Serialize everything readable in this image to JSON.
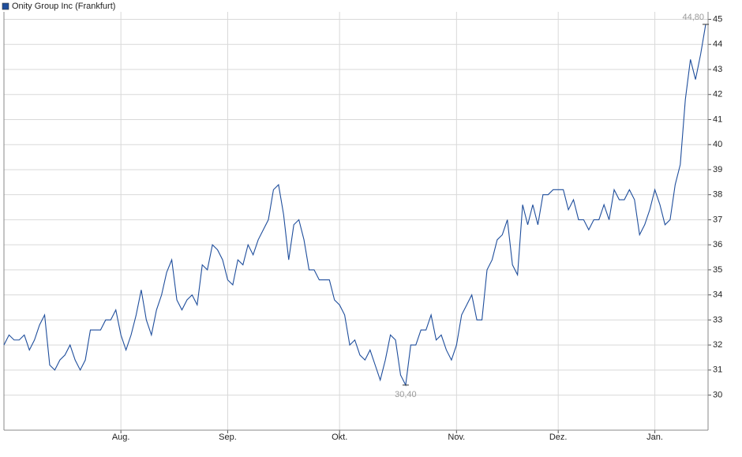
{
  "chart_data": {
    "type": "line",
    "categories": [
      null,
      null,
      null,
      null,
      null,
      null,
      null,
      null,
      null,
      null,
      null,
      null,
      null,
      null,
      null,
      null,
      null,
      null,
      null,
      null,
      null,
      null,
      null,
      "Aug.",
      null,
      null,
      null,
      null,
      null,
      null,
      null,
      null,
      null,
      null,
      null,
      null,
      null,
      null,
      null,
      null,
      null,
      null,
      null,
      null,
      "Sep.",
      null,
      null,
      null,
      null,
      null,
      null,
      null,
      null,
      null,
      null,
      null,
      null,
      null,
      null,
      null,
      null,
      null,
      null,
      null,
      null,
      null,
      "Okt.",
      null,
      null,
      null,
      null,
      null,
      null,
      null,
      null,
      null,
      null,
      null,
      null,
      null,
      null,
      null,
      null,
      null,
      null,
      null,
      null,
      null,
      null,
      "Nov.",
      null,
      null,
      null,
      null,
      null,
      null,
      null,
      null,
      null,
      null,
      null,
      null,
      null,
      null,
      null,
      null,
      null,
      null,
      null,
      "Dez.",
      null,
      null,
      null,
      null,
      null,
      null,
      null,
      null,
      null,
      null,
      null,
      null,
      null,
      null,
      null,
      null,
      null,
      null,
      "Jan.",
      null,
      null,
      null,
      null,
      null,
      null,
      null,
      null,
      null,
      null
    ],
    "series": [
      {
        "name": "Onity Group Inc (Frankfurt)",
        "color": "#1f4e9c",
        "values": [
          32.0,
          32.4,
          32.2,
          32.2,
          32.4,
          31.8,
          32.2,
          32.8,
          33.2,
          31.2,
          31.0,
          31.4,
          31.6,
          32.0,
          31.4,
          31.0,
          31.4,
          32.6,
          32.6,
          32.6,
          33.0,
          33.0,
          33.4,
          32.4,
          31.8,
          32.4,
          33.2,
          34.2,
          33.0,
          32.4,
          33.4,
          34.0,
          34.9,
          35.4,
          33.8,
          33.4,
          33.8,
          34.0,
          33.6,
          35.2,
          35.0,
          36.0,
          35.8,
          35.4,
          34.6,
          34.4,
          35.4,
          35.2,
          36.0,
          35.6,
          36.2,
          36.6,
          37.0,
          38.2,
          38.4,
          37.2,
          35.4,
          36.8,
          37.0,
          36.2,
          35.0,
          35.0,
          34.6,
          34.6,
          34.6,
          33.8,
          33.6,
          33.2,
          32.0,
          32.2,
          31.6,
          31.4,
          31.8,
          31.2,
          30.6,
          31.4,
          32.4,
          32.2,
          30.8,
          30.4,
          32.0,
          32.0,
          32.6,
          32.6,
          33.2,
          32.2,
          32.4,
          31.8,
          31.4,
          32.0,
          33.2,
          33.6,
          34.0,
          33.0,
          33.0,
          35.0,
          35.4,
          36.2,
          36.4,
          37.0,
          35.2,
          34.8,
          37.6,
          36.8,
          37.6,
          36.8,
          38.0,
          38.0,
          38.2,
          38.2,
          38.2,
          37.4,
          37.8,
          37.0,
          37.0,
          36.6,
          37.0,
          37.0,
          37.6,
          37.0,
          38.2,
          37.8,
          37.8,
          38.2,
          37.8,
          36.4,
          36.8,
          37.4,
          38.2,
          37.6,
          36.8,
          37.0,
          38.4,
          39.2,
          41.8,
          43.4,
          42.6,
          43.6,
          44.8
        ]
      }
    ],
    "annotations": [
      {
        "text": "44,80",
        "value": 44.8
      },
      {
        "text": "30,40",
        "value": 30.4
      }
    ],
    "ylim": [
      28.6,
      45.3
    ],
    "yticks": [
      30,
      31,
      32,
      33,
      34,
      35,
      36,
      37,
      38,
      39,
      40,
      41,
      42,
      43,
      44,
      45
    ],
    "grid": true
  }
}
